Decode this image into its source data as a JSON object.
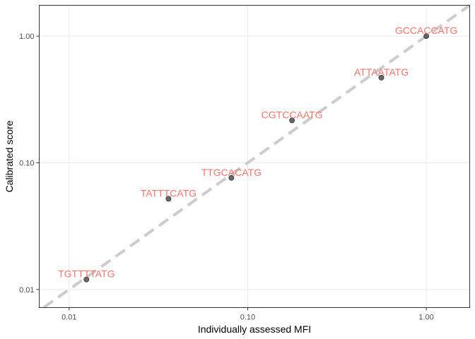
{
  "chart_data": {
    "type": "scatter",
    "title": "",
    "xlabel": "Individually assessed MFI",
    "ylabel": "Calibrated score",
    "x_scale": "log10",
    "y_scale": "log10",
    "xlim": [
      0.0068,
      1.75
    ],
    "ylim": [
      0.0072,
      1.75
    ],
    "x_ticks": [
      {
        "value": 0.01,
        "label": "0.01"
      },
      {
        "value": 0.1,
        "label": "0.10"
      },
      {
        "value": 1.0,
        "label": "1.00"
      }
    ],
    "y_ticks": [
      {
        "value": 0.01,
        "label": "0.01"
      },
      {
        "value": 0.1,
        "label": "0.10"
      },
      {
        "value": 1.0,
        "label": "1.00"
      }
    ],
    "grid": true,
    "reference_line": {
      "type": "identity",
      "style": "dashed",
      "color": "#cccccc"
    },
    "points": [
      {
        "label": "TGTTTTATG",
        "x": 0.0125,
        "y": 0.012
      },
      {
        "label": "TATTTCATG",
        "x": 0.036,
        "y": 0.052
      },
      {
        "label": "TTGCACATG",
        "x": 0.081,
        "y": 0.076
      },
      {
        "label": "CGTCCAATG",
        "x": 0.177,
        "y": 0.216
      },
      {
        "label": "ATTAATATG",
        "x": 0.56,
        "y": 0.47
      },
      {
        "label": "GCCACCATG",
        "x": 1.0,
        "y": 1.0
      }
    ],
    "point_color": "#4d4d4d",
    "label_color": "#f8766d"
  }
}
